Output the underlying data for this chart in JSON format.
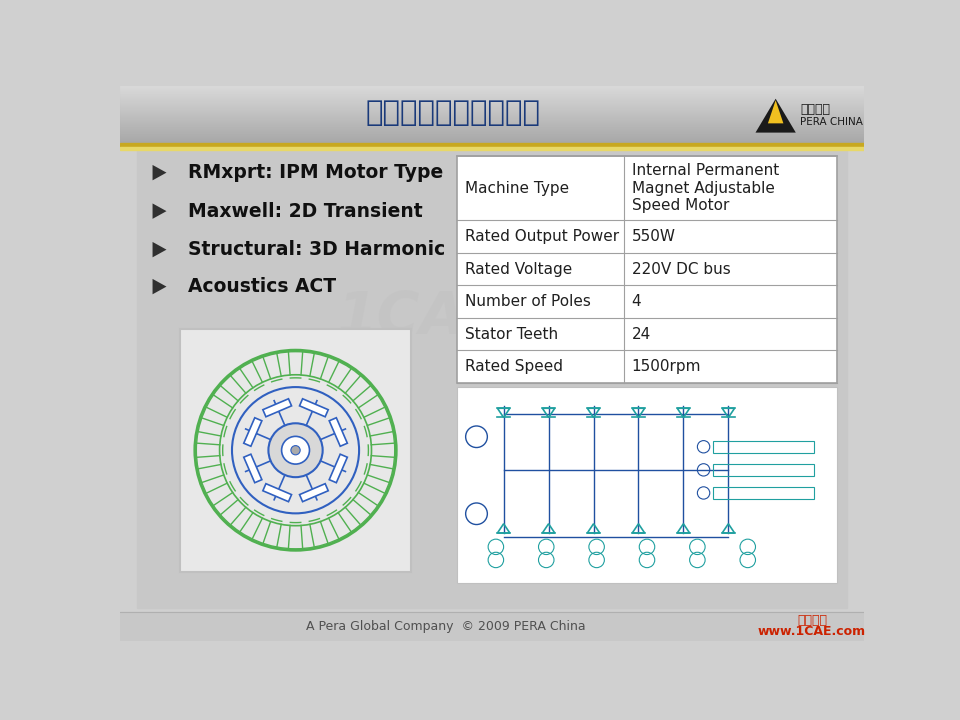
{
  "title": "电机电磁振动噪声分析",
  "title_color": "#1a3a7a",
  "gold_line_color1": "#c8a820",
  "gold_line_color2": "#e8d868",
  "bullet_items": [
    "RMxprt: IPM Motor Type",
    "Maxwell: 2D Transient",
    "Structural: 3D Harmonic",
    "Acoustics ACT"
  ],
  "table_data": [
    [
      "Machine Type",
      "Internal Permanent\nMagnet Adjustable\nSpeed Motor"
    ],
    [
      "Rated Output Power",
      "550W"
    ],
    [
      "Rated Voltage",
      "220V DC bus"
    ],
    [
      "Number of Poles",
      "4"
    ],
    [
      "Stator Teeth",
      "24"
    ],
    [
      "Rated Speed",
      "1500rpm"
    ]
  ],
  "footer_text": "A Pera Global Company  © 2009 PERA China",
  "footer_right": "www.1CAE.com",
  "footer_right_label": "俷真在线",
  "footer_color": "#cc2200",
  "stator_color": "#50b050",
  "rotor_color": "#3060c0",
  "table_bg": "#ffffff",
  "table_border": "#a0a0a0",
  "content_bg": "#c8c8c8",
  "header_bg_dark": "#a8a8a8",
  "header_bg_light": "#d8d8d8",
  "main_bg": "#d0d0d0"
}
